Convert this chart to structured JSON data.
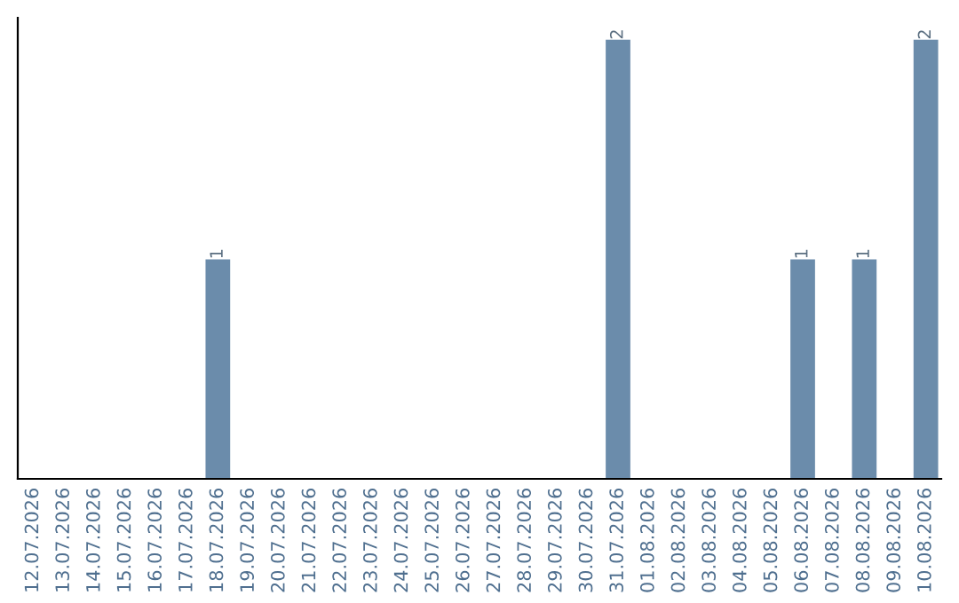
{
  "chart_data": {
    "type": "bar",
    "categories": [
      "12.07.2026",
      "13.07.2026",
      "14.07.2026",
      "15.07.2026",
      "16.07.2026",
      "17.07.2026",
      "18.07.2026",
      "19.07.2026",
      "20.07.2026",
      "21.07.2026",
      "22.07.2026",
      "23.07.2026",
      "24.07.2026",
      "25.07.2026",
      "26.07.2026",
      "27.07.2026",
      "28.07.2026",
      "29.07.2026",
      "30.07.2026",
      "31.07.2026",
      "01.08.2026",
      "02.08.2026",
      "03.08.2026",
      "04.08.2026",
      "05.08.2026",
      "06.08.2026",
      "07.08.2026",
      "08.08.2026",
      "09.08.2026",
      "10.08.2026"
    ],
    "values": [
      0,
      0,
      0,
      0,
      0,
      0,
      1,
      0,
      0,
      0,
      0,
      0,
      0,
      0,
      0,
      0,
      0,
      0,
      0,
      2,
      0,
      0,
      0,
      0,
      0,
      1,
      0,
      1,
      0,
      2
    ],
    "value_labels": [
      null,
      null,
      null,
      null,
      null,
      null,
      "1",
      null,
      null,
      null,
      null,
      null,
      null,
      null,
      null,
      null,
      null,
      null,
      null,
      "2",
      null,
      null,
      null,
      null,
      null,
      "1",
      null,
      "1",
      null,
      "2"
    ],
    "color": "#6b8cab",
    "tick_labels": "x",
    "grid": false,
    "legend": false
  }
}
